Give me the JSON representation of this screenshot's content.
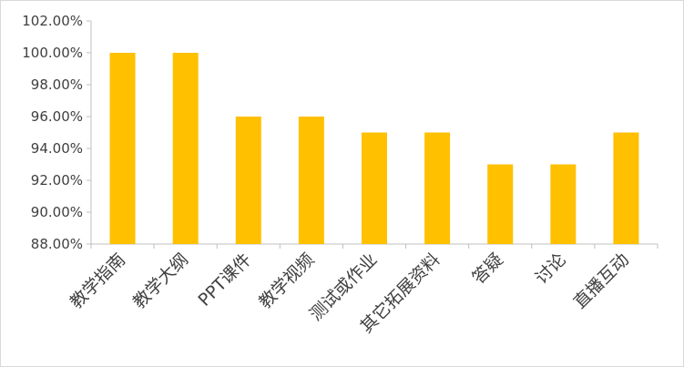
{
  "chart_data": {
    "type": "bar",
    "categories": [
      "教学指南",
      "教学大纲",
      "PPT课件",
      "教学视频",
      "测试或作业",
      "其它拓展资料",
      "答疑",
      "讨论",
      "直播互动"
    ],
    "values": [
      100.0,
      100.0,
      96.0,
      96.0,
      95.0,
      95.0,
      93.0,
      93.0,
      95.0
    ],
    "ylim": [
      88.0,
      102.0
    ],
    "yticks": [
      "88.00%",
      "90.00%",
      "92.00%",
      "94.00%",
      "96.00%",
      "98.00%",
      "100.00%",
      "102.00%"
    ],
    "title": "",
    "xlabel": "",
    "ylabel": "",
    "grid": false,
    "legend": "none",
    "bar_color": "#FFC000",
    "axis_color": "#BFBFBF"
  }
}
